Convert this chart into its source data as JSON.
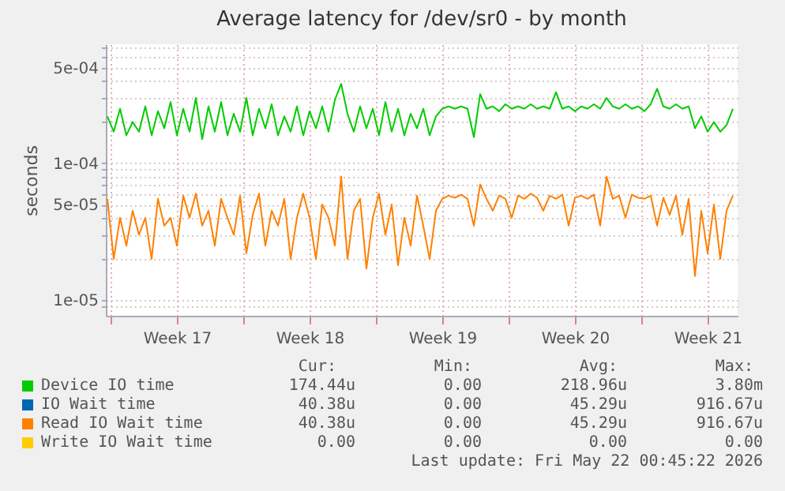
{
  "chart_data": {
    "type": "line",
    "title": "Average latency for /dev/sr0 - by month",
    "ylabel": "seconds",
    "log": true,
    "grid": true,
    "legend": "bottom",
    "line_style": "solid",
    "ylim": [
      7.7e-06,
      0.00074
    ],
    "yticks": [
      {
        "value": 9e-06,
        "label": null
      },
      {
        "value": 1e-05,
        "label": "1e-05"
      },
      {
        "value": 2e-05,
        "label": null
      },
      {
        "value": 3e-05,
        "label": null
      },
      {
        "value": 4e-05,
        "label": null
      },
      {
        "value": 5e-05,
        "label": "5e-05"
      },
      {
        "value": 6e-05,
        "label": null
      },
      {
        "value": 7e-05,
        "label": null
      },
      {
        "value": 8e-05,
        "label": null
      },
      {
        "value": 9e-05,
        "label": null
      },
      {
        "value": 0.0001,
        "label": "1e-04"
      },
      {
        "value": 0.0002,
        "label": null
      },
      {
        "value": 0.0003,
        "label": null
      },
      {
        "value": 0.0004,
        "label": null
      },
      {
        "value": 0.0005,
        "label": "5e-04"
      },
      {
        "value": 0.0006,
        "label": null
      },
      {
        "value": 0.0007,
        "label": null
      }
    ],
    "xlim": [
      "2026-04-19T18:00",
      "2026-05-23T02:00"
    ],
    "xticks": [
      {
        "value": "2026-04-20T00:00",
        "label": null
      },
      {
        "value": "2026-04-23T12:00",
        "label": "Week 17"
      },
      {
        "value": "2026-04-27T00:00",
        "label": null
      },
      {
        "value": "2026-04-30T12:00",
        "label": "Week 18"
      },
      {
        "value": "2026-05-04T00:00",
        "label": null
      },
      {
        "value": "2026-05-07T12:00",
        "label": "Week 19"
      },
      {
        "value": "2026-05-11T00:00",
        "label": null
      },
      {
        "value": "2026-05-14T12:00",
        "label": "Week 20"
      },
      {
        "value": "2026-05-18T00:00",
        "label": null
      },
      {
        "value": "2026-05-21T12:00",
        "label": "Week 21"
      }
    ],
    "x": [
      "2026-04-19T20:00",
      "2026-04-20T04:00",
      "2026-04-20T12:00",
      "2026-04-20T20:00",
      "2026-04-21T04:00",
      "2026-04-21T12:00",
      "2026-04-21T20:00",
      "2026-04-22T04:00",
      "2026-04-22T12:00",
      "2026-04-22T20:00",
      "2026-04-23T04:00",
      "2026-04-23T12:00",
      "2026-04-23T20:00",
      "2026-04-24T04:00",
      "2026-04-24T12:00",
      "2026-04-24T20:00",
      "2026-04-25T04:00",
      "2026-04-25T12:00",
      "2026-04-25T20:00",
      "2026-04-26T04:00",
      "2026-04-26T12:00",
      "2026-04-26T20:00",
      "2026-04-27T04:00",
      "2026-04-27T12:00",
      "2026-04-27T20:00",
      "2026-04-28T04:00",
      "2026-04-28T12:00",
      "2026-04-28T20:00",
      "2026-04-29T04:00",
      "2026-04-29T12:00",
      "2026-04-29T20:00",
      "2026-04-30T04:00",
      "2026-04-30T12:00",
      "2026-04-30T20:00",
      "2026-05-01T04:00",
      "2026-05-01T12:00",
      "2026-05-01T20:00",
      "2026-05-02T04:00",
      "2026-05-02T12:00",
      "2026-05-02T20:00",
      "2026-05-03T04:00",
      "2026-05-03T12:00",
      "2026-05-03T20:00",
      "2026-05-04T04:00",
      "2026-05-04T12:00",
      "2026-05-04T20:00",
      "2026-05-05T04:00",
      "2026-05-05T12:00",
      "2026-05-05T20:00",
      "2026-05-06T04:00",
      "2026-05-06T12:00",
      "2026-05-06T20:00",
      "2026-05-07T04:00",
      "2026-05-07T12:00",
      "2026-05-07T20:00",
      "2026-05-08T04:00",
      "2026-05-08T12:00",
      "2026-05-08T20:00",
      "2026-05-09T04:00",
      "2026-05-09T12:00",
      "2026-05-09T20:00",
      "2026-05-10T04:00",
      "2026-05-10T12:00",
      "2026-05-10T20:00",
      "2026-05-11T04:00",
      "2026-05-11T12:00",
      "2026-05-11T20:00",
      "2026-05-12T04:00",
      "2026-05-12T12:00",
      "2026-05-12T20:00",
      "2026-05-13T04:00",
      "2026-05-13T12:00",
      "2026-05-13T20:00",
      "2026-05-14T04:00",
      "2026-05-14T12:00",
      "2026-05-14T20:00",
      "2026-05-15T04:00",
      "2026-05-15T12:00",
      "2026-05-15T20:00",
      "2026-05-16T04:00",
      "2026-05-16T12:00",
      "2026-05-16T20:00",
      "2026-05-17T04:00",
      "2026-05-17T12:00",
      "2026-05-17T20:00",
      "2026-05-18T04:00",
      "2026-05-18T12:00",
      "2026-05-18T20:00",
      "2026-05-19T04:00",
      "2026-05-19T12:00",
      "2026-05-19T20:00",
      "2026-05-20T04:00",
      "2026-05-20T12:00",
      "2026-05-20T20:00",
      "2026-05-21T04:00",
      "2026-05-21T12:00",
      "2026-05-21T20:00",
      "2026-05-22T04:00",
      "2026-05-22T12:00",
      "2026-05-22T20:00"
    ],
    "series": [
      {
        "name": "Device IO time",
        "color": "#00cc00",
        "values": [
          0.00022,
          0.00017,
          0.00025,
          0.00016,
          0.0002,
          0.00017,
          0.00026,
          0.00016,
          0.00024,
          0.00018,
          0.00028,
          0.00016,
          0.00025,
          0.00017,
          0.0003,
          0.00015,
          0.00026,
          0.00017,
          0.00028,
          0.00016,
          0.00023,
          0.00017,
          0.0003,
          0.00016,
          0.00025,
          0.00018,
          0.00027,
          0.00016,
          0.00022,
          0.00017,
          0.00026,
          0.00016,
          0.00024,
          0.00018,
          0.00026,
          0.00017,
          0.00029,
          0.00038,
          0.00023,
          0.00017,
          0.00026,
          0.00018,
          0.00025,
          0.00016,
          0.00028,
          0.00017,
          0.00025,
          0.00016,
          0.00023,
          0.00018,
          0.00025,
          0.00016,
          0.00022,
          0.00025,
          0.00026,
          0.00025,
          0.00026,
          0.00025,
          0.000155,
          0.00032,
          0.00025,
          0.00026,
          0.00024,
          0.00027,
          0.00025,
          0.00026,
          0.00025,
          0.00027,
          0.00025,
          0.00026,
          0.00025,
          0.00033,
          0.00025,
          0.00026,
          0.00024,
          0.00026,
          0.00025,
          0.00027,
          0.00025,
          0.0003,
          0.00026,
          0.00025,
          0.00027,
          0.00025,
          0.00026,
          0.00024,
          0.00027,
          0.00035,
          0.00026,
          0.00025,
          0.00027,
          0.00025,
          0.00026,
          0.00018,
          0.00022,
          0.00017,
          0.0002,
          0.00017,
          0.00019,
          0.00025
        ]
      },
      {
        "name": "IO Wait time",
        "color": "#0066b3",
        "values": [
          null,
          null,
          null,
          null,
          null,
          null,
          null,
          null,
          null,
          null,
          null,
          null,
          null,
          null,
          null,
          null,
          null,
          null,
          null,
          null,
          null,
          null,
          null,
          null,
          null,
          null,
          null,
          null,
          null,
          null,
          null,
          null,
          null,
          null,
          null,
          null,
          null,
          null,
          null,
          null,
          null,
          null,
          null,
          null,
          null,
          null,
          null,
          null,
          null,
          null,
          null,
          null,
          null,
          null,
          null,
          null,
          null,
          null,
          null,
          null,
          null,
          null,
          null,
          null,
          null,
          null,
          null,
          null,
          null,
          null,
          null,
          null,
          null,
          null,
          null,
          null,
          null,
          null,
          null,
          null,
          null,
          null,
          null,
          null,
          null,
          null,
          null,
          null,
          null,
          null,
          null,
          null,
          null,
          null,
          null,
          null,
          null,
          null,
          null,
          null
        ]
      },
      {
        "name": "Read IO Wait time",
        "color": "#ff8000",
        "values": [
          5.5e-05,
          2e-05,
          4e-05,
          2.5e-05,
          4.5e-05,
          3e-05,
          4e-05,
          2e-05,
          5.5e-05,
          3.5e-05,
          4e-05,
          2.5e-05,
          5.8e-05,
          4e-05,
          6e-05,
          3.5e-05,
          4.5e-05,
          2.5e-05,
          5.5e-05,
          4e-05,
          3e-05,
          5.8e-05,
          2.2e-05,
          4.2e-05,
          6e-05,
          2.5e-05,
          4.5e-05,
          3.5e-05,
          5.5e-05,
          2e-05,
          4e-05,
          6e-05,
          4e-05,
          2e-05,
          5e-05,
          4e-05,
          2.5e-05,
          8e-05,
          2e-05,
          4.5e-05,
          5.5e-05,
          1.7e-05,
          4e-05,
          6e-05,
          3e-05,
          5e-05,
          1.8e-05,
          4e-05,
          2.5e-05,
          5.8e-05,
          3.5e-05,
          2e-05,
          4.5e-05,
          5.5e-05,
          5.8e-05,
          5.6e-05,
          5.9e-05,
          5.5e-05,
          3.5e-05,
          7e-05,
          5.5e-05,
          4.5e-05,
          5.8e-05,
          5.5e-05,
          4e-05,
          5.8e-05,
          5.5e-05,
          6e-05,
          5.6e-05,
          4.5e-05,
          5.8e-05,
          5.5e-05,
          5.9e-05,
          3.5e-05,
          5.6e-05,
          5.8e-05,
          5.5e-05,
          5.9e-05,
          3.5e-05,
          8e-05,
          5.5e-05,
          5.8e-05,
          4e-05,
          5.9e-05,
          5.6e-05,
          5.5e-05,
          5.8e-05,
          3.5e-05,
          5.6e-05,
          4.2e-05,
          5.8e-05,
          3e-05,
          5.5e-05,
          1.5e-05,
          4.5e-05,
          2.2e-05,
          5e-05,
          2e-05,
          4.5e-05,
          5.8e-05
        ]
      },
      {
        "name": "Write IO Wait time",
        "color": "#ffcc00",
        "values": [
          null,
          null,
          null,
          null,
          null,
          null,
          null,
          null,
          null,
          null,
          null,
          null,
          null,
          null,
          null,
          null,
          null,
          null,
          null,
          null,
          null,
          null,
          null,
          null,
          null,
          null,
          null,
          null,
          null,
          null,
          null,
          null,
          null,
          null,
          null,
          null,
          null,
          null,
          null,
          null,
          null,
          null,
          null,
          null,
          null,
          null,
          null,
          null,
          null,
          null,
          null,
          null,
          null,
          null,
          null,
          null,
          null,
          null,
          null,
          null,
          null,
          null,
          null,
          null,
          null,
          null,
          null,
          null,
          null,
          null,
          null,
          null,
          null,
          null,
          null,
          null,
          null,
          null,
          null,
          null,
          null,
          null,
          null,
          null,
          null,
          null,
          null,
          null,
          null,
          null,
          null,
          null,
          null,
          null,
          null,
          null,
          null,
          null,
          null,
          null
        ]
      }
    ],
    "annotations": [
      "Cur:",
      "Min:",
      "Avg:",
      "Max:",
      "174.44u",
      "0.00",
      "218.96u",
      "3.80m",
      "40.38u",
      "0.00",
      "45.29u",
      "916.67u",
      "40.38u",
      "0.00",
      "45.29u",
      "916.67u",
      "0.00",
      "0.00",
      "0.00",
      "0.00",
      "Last update: Fri May 22 00:45:22 2026"
    ]
  }
}
